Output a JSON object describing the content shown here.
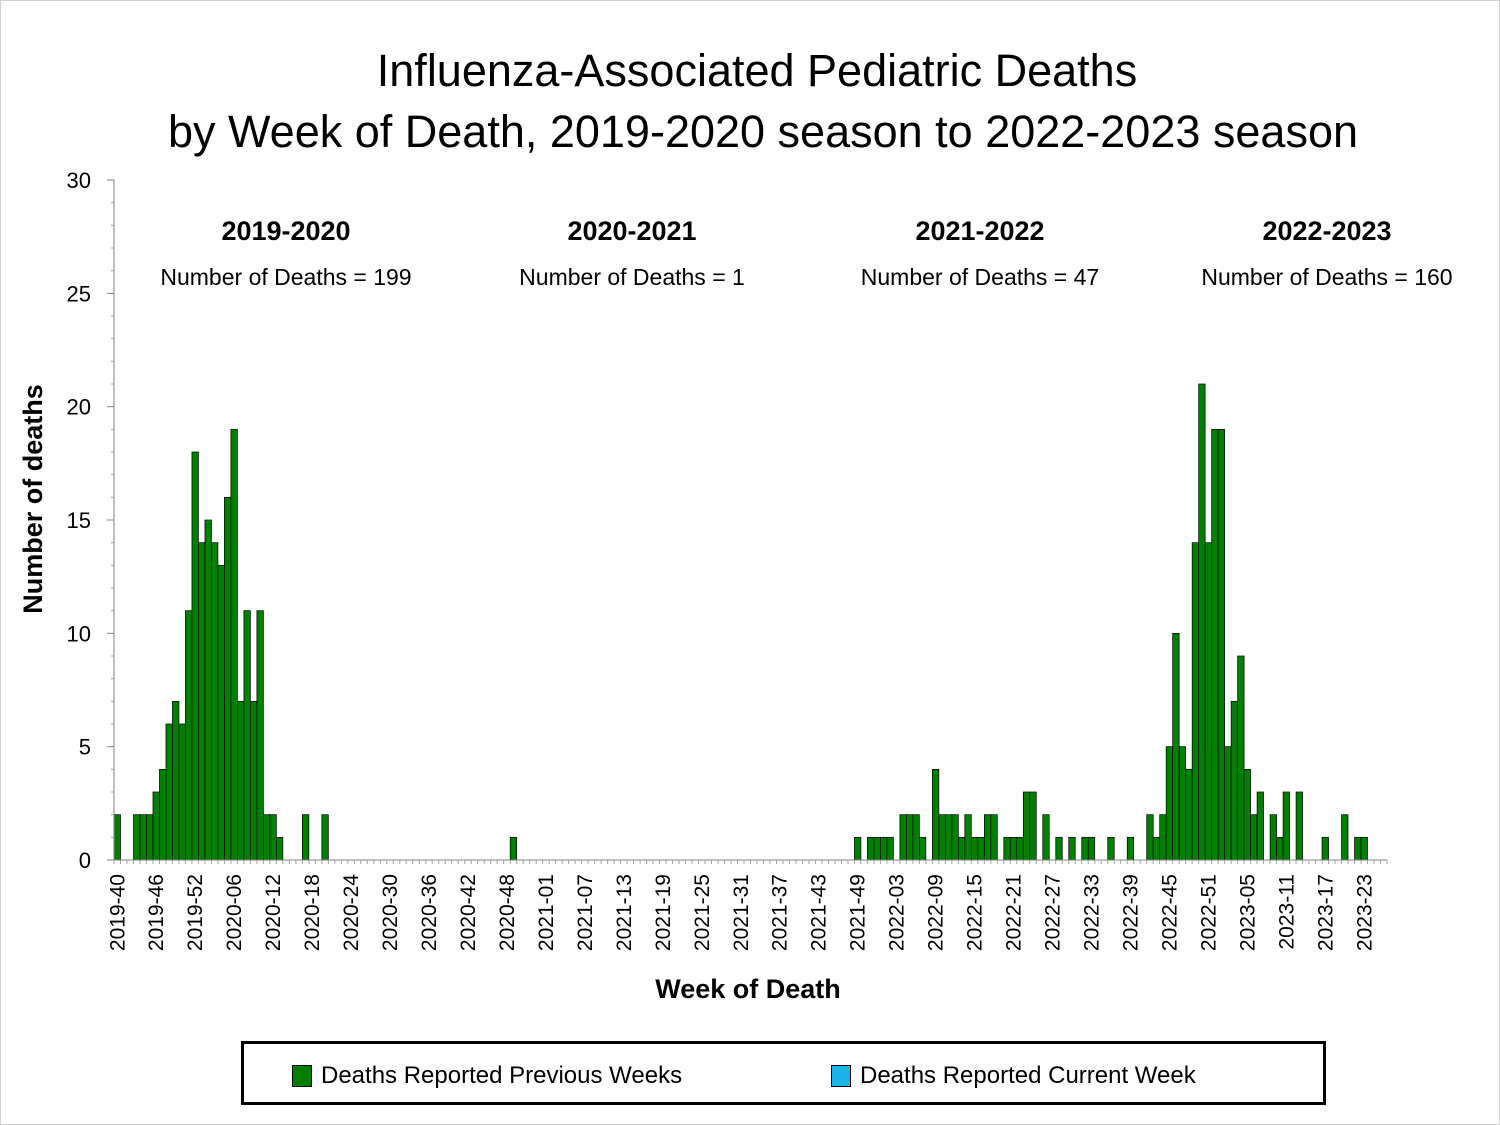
{
  "chart_data": {
    "type": "bar",
    "title": [
      "Influenza-Associated Pediatric Deaths",
      "by Week of Death, 2019-2020 season to 2022-2023 season"
    ],
    "xlabel": "Week of Death",
    "ylabel": "Number of deaths",
    "ylim": [
      0,
      30
    ],
    "yticks": [
      0,
      5,
      10,
      15,
      20,
      25,
      30
    ],
    "xtick_labels": [
      "2019-40",
      "2019-46",
      "2019-52",
      "2020-06",
      "2020-12",
      "2020-18",
      "2020-24",
      "2020-30",
      "2020-36",
      "2020-42",
      "2020-48",
      "2021-01",
      "2021-07",
      "2021-13",
      "2021-19",
      "2021-25",
      "2021-31",
      "2021-37",
      "2021-43",
      "2021-49",
      "2022-03",
      "2022-09",
      "2022-15",
      "2022-21",
      "2022-27",
      "2022-33",
      "2022-39",
      "2022-45",
      "2022-51",
      "2023-05",
      "2023-11",
      "2023-17",
      "2023-23"
    ],
    "colors": {
      "previous": "#008000",
      "current": "#1ab2e8"
    },
    "seasons": [
      {
        "label": "2019-2020",
        "count_text": "Number of Deaths = 199"
      },
      {
        "label": "2020-2021",
        "count_text": "Number of Deaths = 1"
      },
      {
        "label": "2021-2022",
        "count_text": "Number of Deaths = 47"
      },
      {
        "label": "2022-2023",
        "count_text": "Number of Deaths = 160"
      }
    ],
    "series": [
      {
        "name": "Deaths Reported Previous Weeks",
        "values": [
          2,
          0,
          0,
          2,
          2,
          2,
          3,
          4,
          6,
          7,
          6,
          11,
          18,
          14,
          15,
          14,
          13,
          16,
          19,
          7,
          11,
          7,
          11,
          2,
          2,
          1,
          0,
          0,
          0,
          2,
          0,
          0,
          2,
          0,
          0,
          0,
          0,
          0,
          0,
          0,
          0,
          0,
          0,
          0,
          0,
          0,
          0,
          0,
          0,
          0,
          0,
          0,
          0,
          0,
          0,
          0,
          0,
          0,
          0,
          0,
          0,
          1,
          0,
          0,
          0,
          0,
          0,
          0,
          0,
          0,
          0,
          0,
          0,
          0,
          0,
          0,
          0,
          0,
          0,
          0,
          0,
          0,
          0,
          0,
          0,
          0,
          0,
          0,
          0,
          0,
          0,
          0,
          0,
          0,
          0,
          0,
          0,
          0,
          0,
          0,
          0,
          0,
          0,
          0,
          0,
          0,
          0,
          0,
          0,
          0,
          0,
          0,
          0,
          0,
          1,
          0,
          1,
          1,
          1,
          1,
          0,
          2,
          2,
          2,
          1,
          0,
          4,
          2,
          2,
          2,
          1,
          2,
          1,
          1,
          2,
          2,
          0,
          1,
          1,
          1,
          3,
          3,
          0,
          2,
          0,
          1,
          0,
          1,
          0,
          1,
          1,
          0,
          0,
          1,
          0,
          0,
          1,
          0,
          0,
          2,
          1,
          2,
          5,
          10,
          5,
          4,
          14,
          21,
          14,
          19,
          19,
          5,
          7,
          9,
          4,
          2,
          3,
          0,
          2,
          1,
          3,
          0,
          3,
          0,
          0,
          0,
          1,
          0,
          0,
          2,
          0,
          1,
          1,
          0,
          0,
          0
        ]
      },
      {
        "name": "Deaths Reported Current Week",
        "values": []
      }
    ]
  },
  "legend": {
    "items": [
      {
        "label": "Deaths Reported Previous Weeks",
        "color": "#008000"
      },
      {
        "label": "Deaths Reported Current Week",
        "color": "#1ab2e8"
      }
    ]
  }
}
